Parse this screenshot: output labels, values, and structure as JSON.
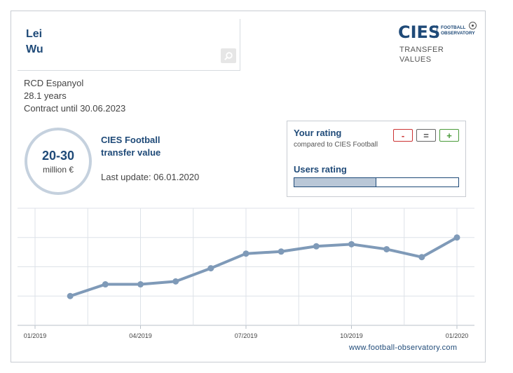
{
  "player": {
    "first_name": "Lei",
    "last_name": "Wu",
    "club": "RCD Espanyol",
    "age": "28.1 years",
    "contract": "Contract until 30.06.2023"
  },
  "logo": {
    "brand": "CIES",
    "sub_line1": "FOOTBALL",
    "sub_line2": "OBSERVATORY",
    "caption_line1": "TRANSFER",
    "caption_line2": "VALUES"
  },
  "valuation": {
    "range": "20-30",
    "unit": "million €",
    "label_line1": "CIES Football",
    "label_line2": "transfer value",
    "last_update": "Last update: 06.01.2020"
  },
  "rating": {
    "your_rating": "Your rating",
    "compared": "compared to CIES Football",
    "minus": "-",
    "equal": "=",
    "plus": "+",
    "users_rating": "Users rating",
    "users_fill_fraction": 0.5
  },
  "footer": {
    "link": "www.football-observatory.com"
  },
  "colors": {
    "brand": "#1f4a78",
    "line": "#7f9ab8",
    "grid": "#dde2e8"
  },
  "icons": [
    "search-icon",
    "football-icon"
  ],
  "chart_data": {
    "type": "line",
    "x_tick_labels": [
      "01/2019",
      "04/2019",
      "07/2019",
      "10/2019",
      "01/2020"
    ],
    "x": [
      "2019-02",
      "2019-03",
      "2019-04",
      "2019-05",
      "2019-06",
      "2019-07",
      "2019-08",
      "2019-09",
      "2019-10",
      "2019-11",
      "2019-12",
      "2020-01"
    ],
    "values": [
      10.0,
      14.0,
      14.0,
      15.0,
      19.5,
      24.5,
      25.2,
      27.0,
      27.7,
      26.0,
      23.3,
      30.0
    ],
    "ylim": [
      0,
      40
    ],
    "grid": true,
    "title": "",
    "xlabel": "",
    "ylabel": ""
  }
}
